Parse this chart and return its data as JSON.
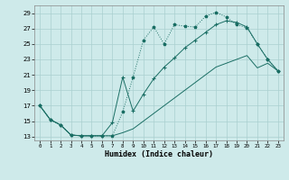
{
  "xlabel": "Humidex (Indice chaleur)",
  "background_color": "#ceeaea",
  "grid_color": "#aacfcf",
  "line_color": "#1a6e64",
  "xlim": [
    -0.5,
    23.5
  ],
  "ylim": [
    12.5,
    30
  ],
  "xticks": [
    0,
    1,
    2,
    3,
    4,
    5,
    6,
    7,
    8,
    9,
    10,
    11,
    12,
    13,
    14,
    15,
    16,
    17,
    18,
    19,
    20,
    21,
    22,
    23
  ],
  "yticks": [
    13,
    15,
    17,
    19,
    21,
    23,
    25,
    27,
    29
  ],
  "line1_x": [
    0,
    1,
    2,
    3,
    4,
    5,
    6,
    7,
    8,
    9,
    10,
    11,
    12,
    13,
    14,
    15,
    16,
    17,
    18,
    19,
    20,
    21,
    22,
    23
  ],
  "line1_y": [
    17,
    15.2,
    14.5,
    13.2,
    13.1,
    13.1,
    13.1,
    13.1,
    16.2,
    20.7,
    25.5,
    27.2,
    25.0,
    27.5,
    27.3,
    27.2,
    28.6,
    29.1,
    28.5,
    27.5,
    27.1,
    25.0,
    23.0,
    21.5
  ],
  "line2_x": [
    0,
    1,
    2,
    3,
    4,
    5,
    6,
    7,
    8,
    9,
    10,
    11,
    12,
    13,
    14,
    15,
    16,
    17,
    18,
    19,
    20,
    21,
    22,
    23
  ],
  "line2_y": [
    17,
    15.2,
    14.5,
    13.2,
    13.1,
    13.1,
    13.1,
    14.8,
    20.7,
    16.3,
    18.5,
    20.5,
    22.0,
    23.2,
    24.5,
    25.5,
    26.5,
    27.5,
    28.0,
    27.8,
    27.2,
    25.0,
    23.0,
    21.5
  ],
  "line3_x": [
    0,
    1,
    2,
    3,
    4,
    5,
    6,
    7,
    8,
    9,
    10,
    11,
    12,
    13,
    14,
    15,
    16,
    17,
    18,
    19,
    20,
    21,
    22,
    23
  ],
  "line3_y": [
    17,
    15.2,
    14.5,
    13.2,
    13.1,
    13.1,
    13.1,
    13.1,
    13.5,
    14.0,
    15.0,
    16.0,
    17.0,
    18.0,
    19.0,
    20.0,
    21.0,
    22.0,
    22.5,
    23.0,
    23.5,
    21.9,
    22.5,
    21.5
  ]
}
